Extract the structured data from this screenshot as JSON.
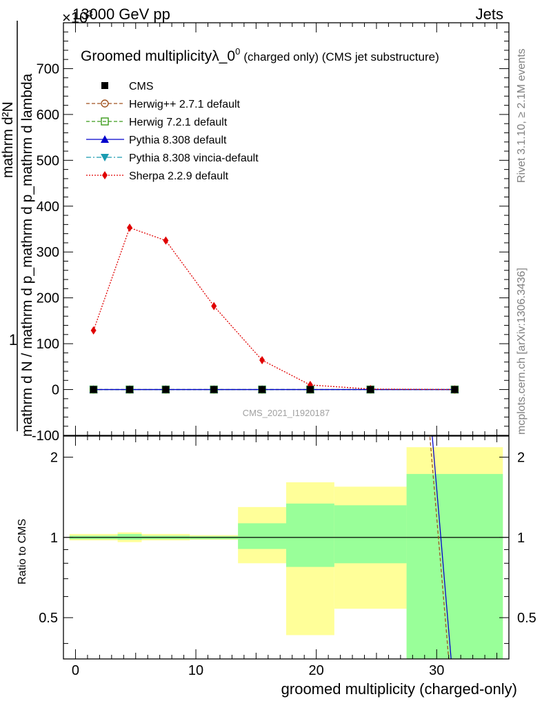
{
  "header": {
    "left": "13000 GeV pp",
    "exponent": "×10",
    "exponent_power": "3",
    "right": "Jets"
  },
  "side": {
    "rivet": "Rivet 3.1.10, ≥ 2.1M events",
    "mcplots": "mcplots.cern.ch [arXiv:1306.3436]"
  },
  "main": {
    "title_main": "Groomed multiplicityλ_0",
    "title_sup": "0",
    "title_paren": "(charged only) (CMS jet substructure)",
    "ylabel_num": "1",
    "ylabel_top": "mathrm d²N",
    "ylabel_bottom": "mathrm d N / mathrm d p_mathrm d p_mathrm d lambda",
    "watermark": "CMS_2021_I1920187"
  },
  "ratio": {
    "ylabel": "Ratio to CMS",
    "xlabel": "groomed multiplicity (charged-only)"
  },
  "legend": [
    {
      "label": "CMS",
      "color": "#000000",
      "marker": "square-filled",
      "line": "none"
    },
    {
      "label": "Herwig++ 2.7.1 default",
      "color": "#a0521e",
      "marker": "circle-open",
      "line": "dashed"
    },
    {
      "label": "Herwig 7.2.1 default",
      "color": "#3a9a1a",
      "marker": "square-open",
      "line": "dashed"
    },
    {
      "label": "Pythia 8.308 default",
      "color": "#0000cc",
      "marker": "triangle-up",
      "line": "solid"
    },
    {
      "label": "Pythia 8.308 vincia-default",
      "color": "#1a9bb0",
      "marker": "triangle-down",
      "line": "dashdot"
    },
    {
      "label": "Sherpa 2.2.9 default",
      "color": "#e00000",
      "marker": "diamond",
      "line": "dotted"
    }
  ],
  "chart_data": [
    {
      "type": "line",
      "panel": "main",
      "x": [
        1.5,
        4.5,
        7.5,
        11.5,
        15.5,
        19.5,
        24.5,
        31.5
      ],
      "series": [
        {
          "name": "CMS",
          "values": [
            0,
            0,
            0,
            0,
            0,
            0,
            0,
            0
          ]
        },
        {
          "name": "Herwig++ 2.7.1 default",
          "values": [
            0,
            0,
            0,
            0,
            0,
            0,
            0,
            0
          ]
        },
        {
          "name": "Herwig 7.2.1 default",
          "values": [
            0,
            0,
            0,
            0,
            0,
            0,
            0,
            0
          ]
        },
        {
          "name": "Pythia 8.308 default",
          "values": [
            0,
            0,
            0,
            0,
            0,
            0,
            0,
            0
          ]
        },
        {
          "name": "Pythia 8.308 vincia-default",
          "values": [
            0,
            0,
            0,
            0,
            0,
            0,
            0,
            0
          ]
        },
        {
          "name": "Sherpa 2.2.9 default",
          "values": [
            129,
            353,
            325,
            182,
            64,
            10,
            1,
            0
          ]
        }
      ],
      "xlim": [
        -1,
        36
      ],
      "ylim": [
        -100,
        800
      ],
      "xticks": [
        0,
        10,
        20,
        30
      ],
      "yticks": [
        -100,
        0,
        100,
        200,
        300,
        400,
        500,
        600,
        700
      ]
    },
    {
      "type": "area",
      "panel": "ratio",
      "bands": [
        {
          "x0": -0.5,
          "x1": 3.5,
          "inner": [
            0.985,
            1.015
          ],
          "outer": [
            0.975,
            1.03
          ]
        },
        {
          "x0": 3.5,
          "x1": 5.5,
          "inner": [
            0.98,
            1.03
          ],
          "outer": [
            0.96,
            1.045
          ]
        },
        {
          "x0": 5.5,
          "x1": 9.5,
          "inner": [
            0.985,
            1.015
          ],
          "outer": [
            0.975,
            1.03
          ]
        },
        {
          "x0": 9.5,
          "x1": 13.5,
          "inner": [
            0.985,
            1.01
          ],
          "outer": [
            0.98,
            1.02
          ]
        },
        {
          "x0": 13.5,
          "x1": 17.5,
          "inner": [
            0.905,
            1.13
          ],
          "outer": [
            0.8,
            1.3
          ]
        },
        {
          "x0": 17.5,
          "x1": 21.5,
          "inner": [
            0.775,
            1.34
          ],
          "outer": [
            0.43,
            1.61
          ]
        },
        {
          "x0": 21.5,
          "x1": 27.5,
          "inner": [
            0.8,
            1.32
          ],
          "outer": [
            0.54,
            1.55
          ]
        },
        {
          "x0": 27.5,
          "x1": 35.5,
          "inner": [
            0.3,
            1.73
          ],
          "outer": [
            0.3,
            2.18
          ]
        }
      ],
      "lines": [
        {
          "name": "Pythia 8.308 default",
          "x": [
            29.6,
            31.2
          ],
          "y": [
            2.5,
            0.35
          ]
        },
        {
          "name": "Herwig++ 2.7.1 default",
          "x": [
            29.4,
            31.0
          ],
          "y": [
            2.5,
            0.35
          ]
        }
      ],
      "reference": 1,
      "ylim": [
        0.35,
        2.4
      ],
      "log_y": true,
      "yticks": [
        0.5,
        1,
        2
      ]
    }
  ]
}
